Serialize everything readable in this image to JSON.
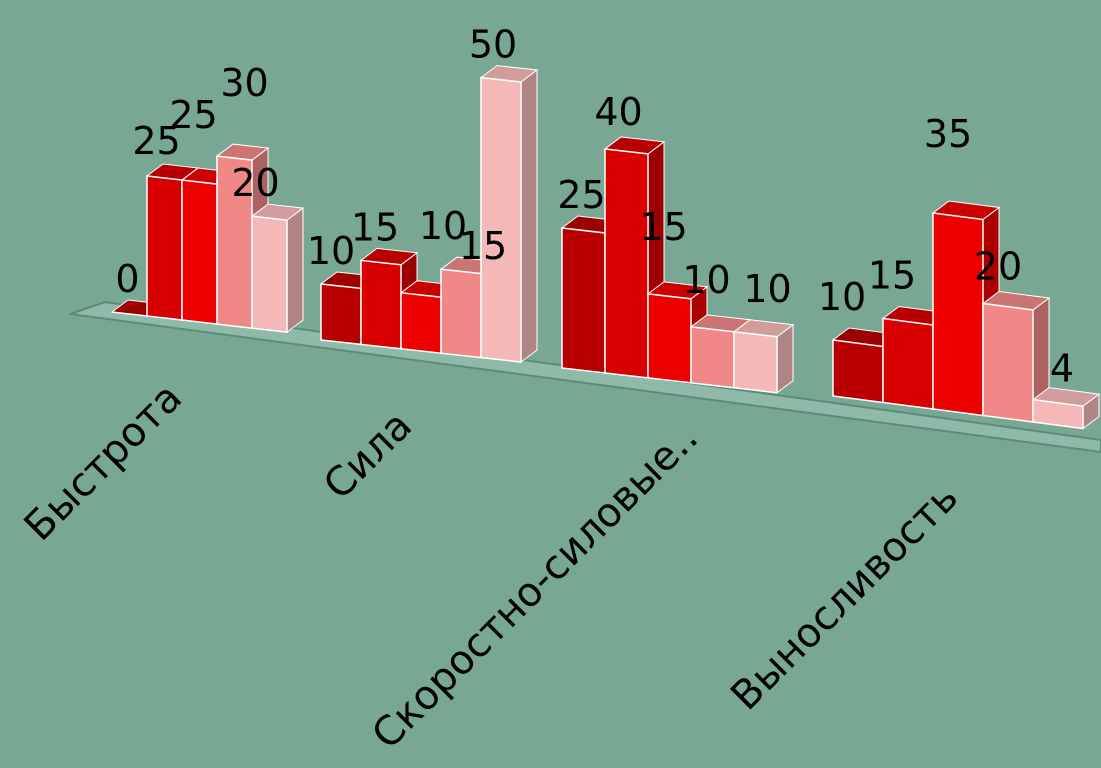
{
  "chart_data": {
    "type": "bar",
    "title": "",
    "xlabel": "",
    "ylabel": "",
    "categories": [
      "Быстрота",
      "Сила",
      "Скоростно-силовые..",
      "Выносливость"
    ],
    "series": [
      {
        "values": [
          0,
          10,
          25,
          10
        ]
      },
      {
        "values": [
          25,
          15,
          40,
          15
        ]
      },
      {
        "values": [
          25,
          10,
          15,
          35
        ]
      },
      {
        "values": [
          30,
          15,
          10,
          20
        ]
      },
      {
        "values": [
          20,
          50,
          10,
          4
        ]
      }
    ],
    "ylim": [
      0,
      50
    ],
    "grid": false,
    "legend": "none",
    "series_colors": [
      "#b80000",
      "#d80000",
      "#ef0000",
      "#f08888",
      "#f5b8b8"
    ]
  }
}
